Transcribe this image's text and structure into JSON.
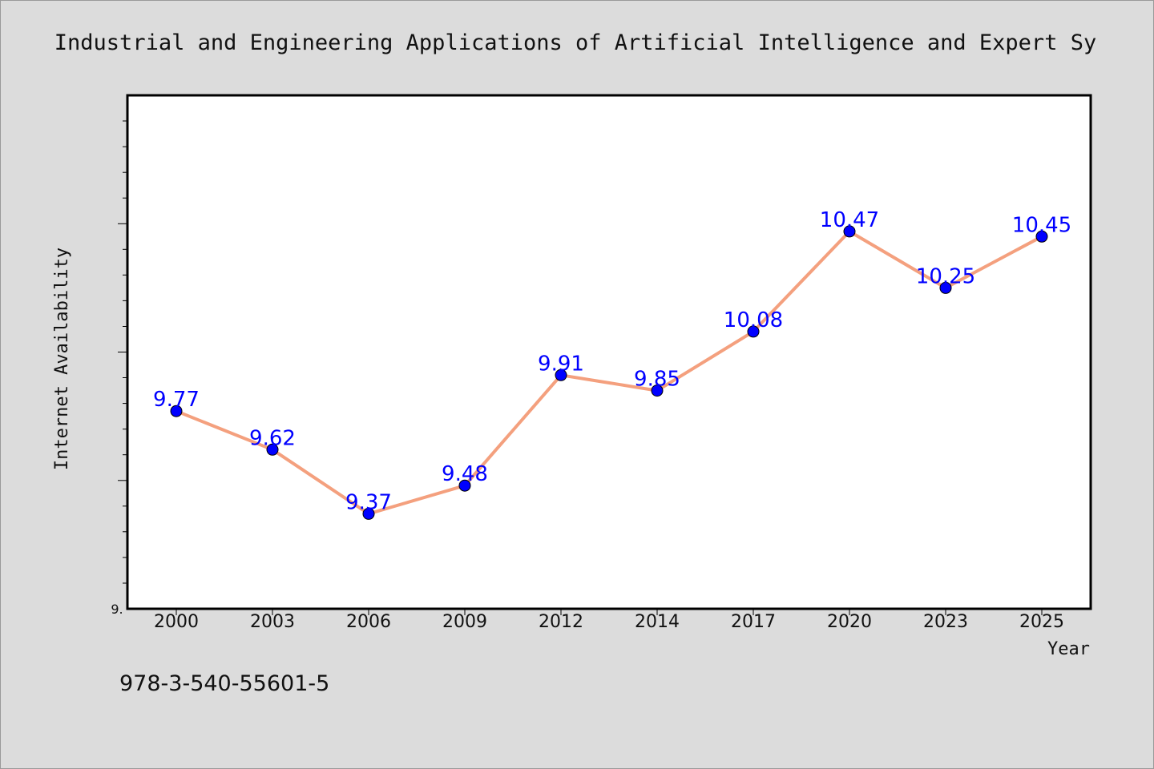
{
  "chart_data": {
    "type": "line",
    "title": "Industrial and Engineering Applications of Artificial Intelligence and Expert Sy",
    "xlabel": "Year",
    "ylabel": "Internet Availability",
    "categories": [
      "2000",
      "2003",
      "2006",
      "2009",
      "2012",
      "2014",
      "2017",
      "2020",
      "2023",
      "2025"
    ],
    "values": [
      9.77,
      9.62,
      9.37,
      9.48,
      9.91,
      9.85,
      10.08,
      10.47,
      10.25,
      10.45
    ],
    "data_labels": [
      "9.77",
      "9.62",
      "9.37",
      "9.48",
      "9.91",
      "9.85",
      "10.08",
      "10.47",
      "10.25",
      "10.45"
    ],
    "ylim": [
      9.0,
      11.0
    ],
    "y_tick_label": "9.",
    "grid": false,
    "line_color": "#f4a07e",
    "marker_color": "#0000ff",
    "label_color": "#0000ff",
    "footer": "978-3-540-55601-5"
  }
}
